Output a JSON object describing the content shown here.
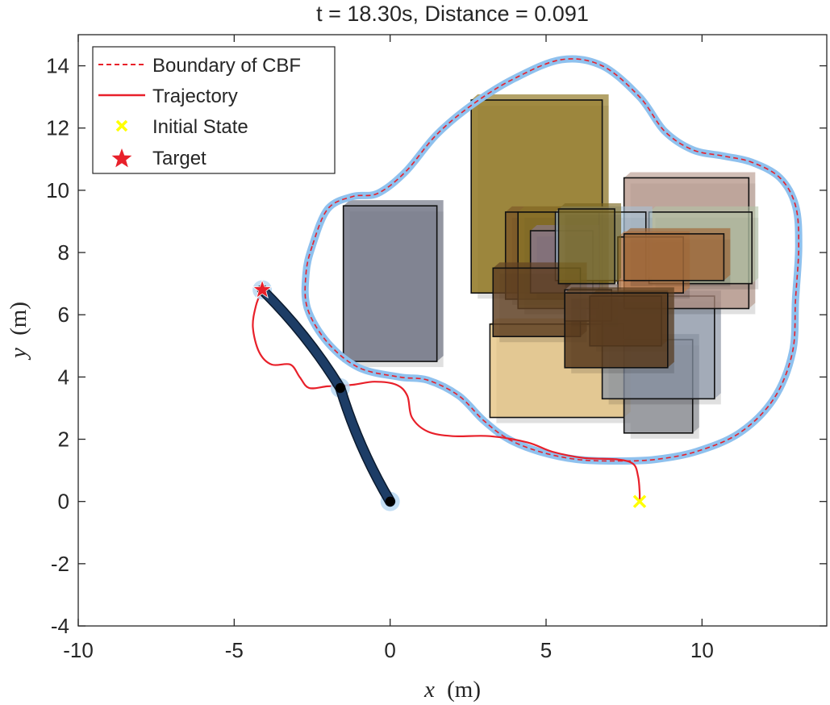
{
  "chart_data": {
    "type": "scatter",
    "title": "t = 18.30s, Distance = 0.091",
    "xlabel": {
      "var": "x",
      "unit": "(m)"
    },
    "ylabel": {
      "var": "y",
      "unit": "(m)"
    },
    "xlim": [
      -10,
      14
    ],
    "ylim": [
      -4,
      15
    ],
    "xticks": [
      -10,
      -5,
      0,
      5,
      10
    ],
    "yticks": [
      -4,
      -2,
      0,
      2,
      4,
      6,
      8,
      10,
      12,
      14
    ],
    "grid": false,
    "legend_position": "top-left",
    "legend": [
      {
        "key": "boundary",
        "label": "Boundary of CBF"
      },
      {
        "key": "trajectory",
        "label": "Trajectory"
      },
      {
        "key": "initial",
        "label": "Initial State"
      },
      {
        "key": "target",
        "label": "Target"
      }
    ],
    "colors": {
      "boundary_band": "#8fc1ee",
      "boundary_line": "#e8202a",
      "trajectory": "#e8202a",
      "initial": "#ffff00",
      "target": "#e8202a",
      "arm": "#1d3d66",
      "joint": "#000000",
      "joint_halo": "#b9d8f2"
    },
    "initial_state": [
      8.0,
      0.0
    ],
    "target": [
      -4.1,
      6.8
    ],
    "arm": {
      "joints": [
        [
          0.0,
          0.0
        ],
        [
          -1.6,
          3.65
        ],
        [
          -4.1,
          6.8
        ]
      ]
    },
    "boundary": [
      [
        -2.5,
        8.2
      ],
      [
        -2.7,
        7.3
      ],
      [
        -2.65,
        6.2
      ],
      [
        -2.0,
        5.1
      ],
      [
        -1.0,
        4.3
      ],
      [
        0.3,
        4.0
      ],
      [
        1.2,
        3.9
      ],
      [
        2.2,
        3.4
      ],
      [
        3.0,
        2.6
      ],
      [
        3.8,
        2.0
      ],
      [
        4.8,
        1.6
      ],
      [
        6.0,
        1.35
      ],
      [
        7.3,
        1.3
      ],
      [
        8.5,
        1.35
      ],
      [
        9.8,
        1.6
      ],
      [
        11.2,
        2.2
      ],
      [
        12.3,
        3.3
      ],
      [
        12.9,
        4.8
      ],
      [
        13.0,
        6.5
      ],
      [
        13.1,
        8.2
      ],
      [
        13.0,
        9.5
      ],
      [
        12.5,
        10.4
      ],
      [
        11.6,
        10.9
      ],
      [
        10.7,
        11.1
      ],
      [
        9.7,
        11.3
      ],
      [
        8.8,
        11.9
      ],
      [
        8.0,
        13.0
      ],
      [
        6.8,
        14.0
      ],
      [
        5.5,
        14.2
      ],
      [
        4.0,
        13.6
      ],
      [
        2.7,
        12.8
      ],
      [
        1.5,
        11.8
      ],
      [
        0.5,
        10.6
      ],
      [
        -0.4,
        9.9
      ],
      [
        -1.2,
        9.8
      ],
      [
        -2.0,
        9.4
      ],
      [
        -2.5,
        8.2
      ]
    ],
    "trajectory": [
      [
        8.0,
        0.0
      ],
      [
        8.0,
        0.3
      ],
      [
        7.95,
        0.8
      ],
      [
        7.8,
        1.2
      ],
      [
        7.3,
        1.35
      ],
      [
        6.2,
        1.4
      ],
      [
        5.2,
        1.6
      ],
      [
        4.4,
        1.9
      ],
      [
        3.2,
        2.1
      ],
      [
        2.0,
        2.1
      ],
      [
        1.2,
        2.25
      ],
      [
        0.7,
        2.7
      ],
      [
        0.55,
        3.4
      ],
      [
        0.2,
        3.75
      ],
      [
        -0.5,
        3.85
      ],
      [
        -1.2,
        3.75
      ],
      [
        -2.0,
        3.7
      ],
      [
        -2.6,
        3.65
      ],
      [
        -2.9,
        4.0
      ],
      [
        -3.2,
        4.4
      ],
      [
        -3.8,
        4.4
      ],
      [
        -4.2,
        4.8
      ],
      [
        -4.4,
        5.6
      ],
      [
        -4.3,
        6.3
      ],
      [
        -4.1,
        6.8
      ]
    ],
    "obstacles": [
      {
        "x": 3.2,
        "y": 2.7,
        "w": 4.3,
        "h": 3.0,
        "color": "#e4c07a",
        "alpha": 0.75
      },
      {
        "x": 7.5,
        "y": 2.2,
        "w": 2.2,
        "h": 3.0,
        "color": "#7d8088",
        "alpha": 0.7
      },
      {
        "x": 6.8,
        "y": 3.3,
        "w": 3.6,
        "h": 3.3,
        "color": "#8a96a8",
        "alpha": 0.72
      },
      {
        "x": -1.5,
        "y": 4.5,
        "w": 3.0,
        "h": 5.0,
        "color": "#6b6f80",
        "alpha": 0.82
      },
      {
        "x": 2.6,
        "y": 6.7,
        "w": 4.2,
        "h": 6.2,
        "color": "#8f7620",
        "alpha": 0.85
      },
      {
        "x": 7.5,
        "y": 6.2,
        "w": 4.0,
        "h": 4.2,
        "color": "#b08e80",
        "alpha": 0.72
      },
      {
        "x": 8.3,
        "y": 7.0,
        "w": 3.3,
        "h": 2.3,
        "color": "#b3c3a6",
        "alpha": 0.75
      },
      {
        "x": 3.7,
        "y": 6.5,
        "w": 3.1,
        "h": 2.8,
        "color": "#7a5325",
        "alpha": 0.75
      },
      {
        "x": 4.1,
        "y": 6.2,
        "w": 2.6,
        "h": 3.1,
        "color": "#8a7628",
        "alpha": 0.72
      },
      {
        "x": 4.5,
        "y": 6.7,
        "w": 2.0,
        "h": 2.0,
        "color": "#8a7898",
        "alpha": 0.75
      },
      {
        "x": 5.3,
        "y": 7.1,
        "w": 2.9,
        "h": 2.2,
        "color": "#a7c3d8",
        "alpha": 0.7
      },
      {
        "x": 7.3,
        "y": 6.7,
        "w": 2.1,
        "h": 1.8,
        "color": "#c07b45",
        "alpha": 0.75
      },
      {
        "x": 3.3,
        "y": 5.3,
        "w": 2.8,
        "h": 2.2,
        "color": "#5f3f22",
        "alpha": 0.82
      },
      {
        "x": 5.6,
        "y": 5.8,
        "w": 1.5,
        "h": 1.0,
        "color": "#a48c82",
        "alpha": 0.82
      },
      {
        "x": 6.4,
        "y": 5.0,
        "w": 2.3,
        "h": 1.6,
        "color": "#6e4c2c",
        "alpha": 0.82
      },
      {
        "x": 5.6,
        "y": 4.3,
        "w": 3.3,
        "h": 2.4,
        "color": "#5a3c1e",
        "alpha": 0.85
      },
      {
        "x": 5.4,
        "y": 7.0,
        "w": 1.8,
        "h": 2.4,
        "color": "#7a6620",
        "alpha": 0.8
      },
      {
        "x": 7.5,
        "y": 7.1,
        "w": 3.2,
        "h": 1.5,
        "color": "#a0683a",
        "alpha": 0.85
      }
    ]
  }
}
